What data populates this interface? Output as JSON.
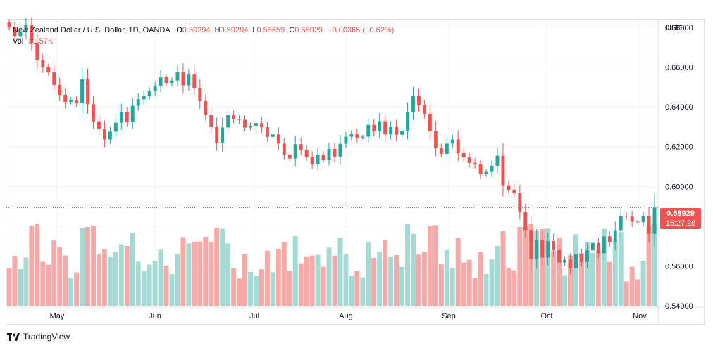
{
  "legend": {
    "symbol": "New Zealand Dollar / U.S. Dollar, 1D, OANDA",
    "o_label": "O",
    "o_value": "0.59294",
    "h_label": "H",
    "h_value": "0.59294",
    "l_label": "L",
    "l_value": "0.58659",
    "c_label": "C",
    "c_value": "0.58929",
    "change": "−0.00365 (−0.62%)",
    "vol_label": "Vol",
    "vol_value": "31.57K"
  },
  "price_axis": {
    "currency": "USD"
  },
  "current_price": {
    "price": "0.58929",
    "countdown": "15:27:28"
  },
  "brand": {
    "name": "TradingView"
  },
  "colors": {
    "up": "#26a69a",
    "down": "#ef5350",
    "up_volume": "#a5dad4",
    "down_volume": "#f7a9a7",
    "grid": "#f0f3fa",
    "text": "#131722"
  },
  "chart_data": {
    "type": "candlestick",
    "series_name": "NZD/USD",
    "x_ticks": [
      "May",
      "Jun",
      "Jul",
      "Aug",
      "Sep",
      "Oct",
      "Nov"
    ],
    "y_ticks": [
      "0.68000",
      "0.66000",
      "0.64000",
      "0.62000",
      "0.60000",
      "0.58000",
      "0.56000",
      "0.54000"
    ],
    "ylim": [
      0.5397,
      0.6838
    ],
    "last_price": 0.58929,
    "grid": true,
    "candles_close": [
      0.6798,
      0.6756,
      0.6775,
      0.681,
      0.6722,
      0.6634,
      0.66,
      0.6573,
      0.651,
      0.646,
      0.6425,
      0.6435,
      0.6419,
      0.6539,
      0.6413,
      0.6327,
      0.629,
      0.6236,
      0.6275,
      0.632,
      0.6375,
      0.6325,
      0.6405,
      0.6438,
      0.6454,
      0.6478,
      0.6505,
      0.6548,
      0.652,
      0.6532,
      0.6574,
      0.6508,
      0.6562,
      0.6495,
      0.643,
      0.636,
      0.63,
      0.622,
      0.6296,
      0.6359,
      0.6338,
      0.6335,
      0.6296,
      0.6305,
      0.6318,
      0.6297,
      0.6249,
      0.6261,
      0.6215,
      0.616,
      0.614,
      0.6212,
      0.6185,
      0.6149,
      0.6114,
      0.616,
      0.6135,
      0.6188,
      0.615,
      0.6214,
      0.625,
      0.6262,
      0.6245,
      0.625,
      0.6309,
      0.6278,
      0.6328,
      0.6261,
      0.6299,
      0.626,
      0.6278,
      0.6375,
      0.6453,
      0.641,
      0.6365,
      0.6278,
      0.6195,
      0.6164,
      0.6215,
      0.6236,
      0.617,
      0.6145,
      0.6118,
      0.611,
      0.6063,
      0.6073,
      0.6104,
      0.6154,
      0.6006,
      0.5983,
      0.5966,
      0.587,
      0.5782,
      0.5636,
      0.573,
      0.5643,
      0.5725,
      0.568,
      0.5617,
      0.5631,
      0.5588,
      0.5662,
      0.562,
      0.5678,
      0.5716,
      0.5664,
      0.5749,
      0.572,
      0.578,
      0.5852,
      0.5848,
      0.5823,
      0.582,
      0.585,
      0.5762,
      0.5893
    ]
  }
}
